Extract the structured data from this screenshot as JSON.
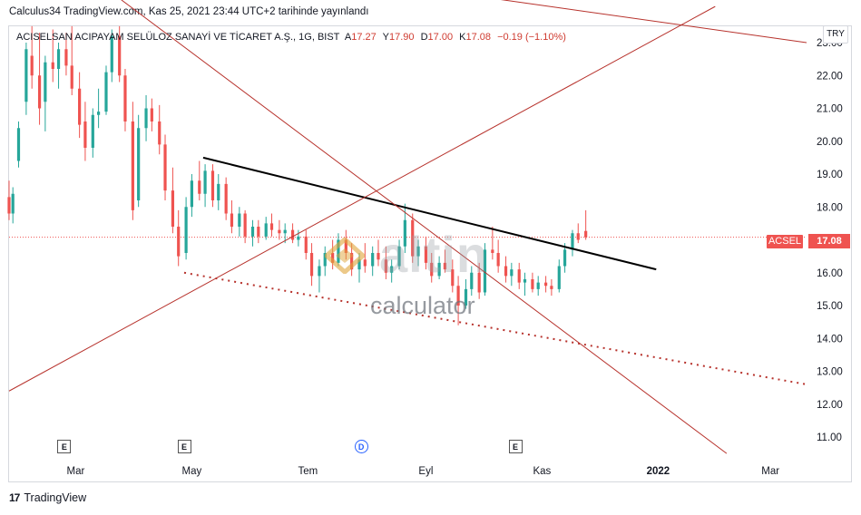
{
  "publish_line": "Calculus34 TradingView.com, Kas 25, 2021 23:44 UTC+2 tarihinde yayınlandı",
  "currency_badge": "TRY",
  "legend": {
    "name": "ACISELSAN ACIPAYAM SELÜLOZ SANAYİ VE TİCARET A.Ş., 1G, BIST",
    "open_label": "A",
    "open": "17.27",
    "high_label": "Y",
    "high": "17.90",
    "low_label": "D",
    "low": "17.00",
    "close_label": "K",
    "close": "17.08",
    "change": "−0.19 (−1.10%)"
  },
  "last_price": {
    "symbol": "ACSEL",
    "value": "17.08"
  },
  "watermark": {
    "brand": "altin",
    "sub": "calculator"
  },
  "events": [
    {
      "label": "E",
      "kind": "earnings",
      "date": "2021-02-23"
    },
    {
      "label": "E",
      "kind": "earnings",
      "date": "2021-04-27"
    },
    {
      "label": "D",
      "kind": "dividend",
      "date": "2021-07-29"
    },
    {
      "label": "E",
      "kind": "earnings",
      "date": "2021-10-18"
    }
  ],
  "footer": {
    "brand": "TradingView",
    "logo_glyph": "17"
  },
  "colors": {
    "up": "#26a69a",
    "down": "#ef5350",
    "trendline": "#b7322c",
    "price_line": "#ef5350"
  },
  "chart_data": {
    "type": "candlestick",
    "title": "ACISELSAN ACIPAYAM SELÜLOZ SANAYİ VE TİCARET A.Ş., 1G, BIST",
    "ylim": [
      10.5,
      23.5
    ],
    "y_ticks": [
      11,
      12,
      13,
      14,
      15,
      16,
      17,
      18,
      19,
      20,
      21,
      22,
      23
    ],
    "y_tick_labels": [
      "11.00",
      "12.00",
      "13.00",
      "14.00",
      "15.00",
      "16.00",
      "17.00",
      "18.00",
      "19.00",
      "20.00",
      "21.00",
      "22.00",
      "23.00"
    ],
    "xlim": [
      "2021-01-25",
      "2022-03-20"
    ],
    "x_ticks": [
      {
        "label": "Mar",
        "date": "2021-03-01"
      },
      {
        "label": "May",
        "date": "2021-05-01"
      },
      {
        "label": "Tem",
        "date": "2021-07-01"
      },
      {
        "label": "Eyl",
        "date": "2021-09-01"
      },
      {
        "label": "Kas",
        "date": "2021-11-01"
      },
      {
        "label": "2022",
        "date": "2022-01-01"
      },
      {
        "label": "Mar",
        "date": "2022-03-01"
      }
    ],
    "grid": false,
    "last_close": 17.08,
    "trendlines": [
      {
        "style": "black-solid",
        "from": {
          "date": "2021-05-07",
          "price": 19.5
        },
        "to": {
          "date": "2021-12-31",
          "price": 16.1
        }
      },
      {
        "style": "red-dotted",
        "from": {
          "date": "2021-04-27",
          "price": 16.0
        },
        "to": {
          "date": "2022-03-20",
          "price": 12.6
        }
      },
      {
        "style": "red-solid",
        "from": {
          "date": "2021-01-25",
          "price": 12.4
        },
        "to": {
          "date": "2022-01-31",
          "price": 24.1
        }
      },
      {
        "style": "red-solid",
        "from": {
          "date": "2021-03-25",
          "price": 24.3
        },
        "to": {
          "date": "2022-02-06",
          "price": 10.5
        }
      },
      {
        "style": "red-solid",
        "from": {
          "date": "2021-09-17",
          "price": 24.5
        },
        "to": {
          "date": "2022-03-20",
          "price": 23.0
        }
      }
    ],
    "candles": [
      {
        "date": "2021-01-25",
        "o": 18.3,
        "h": 18.8,
        "l": 17.6,
        "c": 17.8
      },
      {
        "date": "2021-01-27",
        "o": 17.8,
        "h": 18.6,
        "l": 17.5,
        "c": 18.4
      },
      {
        "date": "2021-01-30",
        "o": 19.4,
        "h": 20.6,
        "l": 19.2,
        "c": 20.4
      },
      {
        "date": "2021-02-03",
        "o": 21.2,
        "h": 23.0,
        "l": 20.8,
        "c": 22.8
      },
      {
        "date": "2021-02-06",
        "o": 22.6,
        "h": 23.5,
        "l": 21.6,
        "c": 22.0
      },
      {
        "date": "2021-02-10",
        "o": 22.0,
        "h": 23.3,
        "l": 20.5,
        "c": 21.0
      },
      {
        "date": "2021-02-13",
        "o": 21.2,
        "h": 22.6,
        "l": 20.3,
        "c": 22.4
      },
      {
        "date": "2021-02-17",
        "o": 22.4,
        "h": 23.4,
        "l": 21.8,
        "c": 22.2
      },
      {
        "date": "2021-02-20",
        "o": 22.2,
        "h": 23.0,
        "l": 21.6,
        "c": 22.8
      },
      {
        "date": "2021-02-24",
        "o": 22.8,
        "h": 23.3,
        "l": 22.0,
        "c": 22.3
      },
      {
        "date": "2021-02-27",
        "o": 22.3,
        "h": 23.5,
        "l": 21.4,
        "c": 21.6
      },
      {
        "date": "2021-03-03",
        "o": 21.6,
        "h": 22.1,
        "l": 20.1,
        "c": 20.5
      },
      {
        "date": "2021-03-06",
        "o": 20.6,
        "h": 21.2,
        "l": 19.4,
        "c": 19.8
      },
      {
        "date": "2021-03-10",
        "o": 19.8,
        "h": 21.0,
        "l": 19.5,
        "c": 20.8
      },
      {
        "date": "2021-03-13",
        "o": 20.8,
        "h": 21.6,
        "l": 20.4,
        "c": 20.9
      },
      {
        "date": "2021-03-17",
        "o": 20.9,
        "h": 22.3,
        "l": 20.8,
        "c": 22.1
      },
      {
        "date": "2021-03-20",
        "o": 22.1,
        "h": 23.4,
        "l": 21.8,
        "c": 23.2
      },
      {
        "date": "2021-03-24",
        "o": 23.2,
        "h": 23.5,
        "l": 21.8,
        "c": 22.0
      },
      {
        "date": "2021-03-27",
        "o": 22.0,
        "h": 22.2,
        "l": 20.3,
        "c": 20.6
      },
      {
        "date": "2021-03-31",
        "o": 20.6,
        "h": 21.2,
        "l": 17.6,
        "c": 17.9
      },
      {
        "date": "2021-04-03",
        "o": 18.2,
        "h": 20.8,
        "l": 18.0,
        "c": 20.4
      },
      {
        "date": "2021-04-07",
        "o": 20.4,
        "h": 21.4,
        "l": 20.0,
        "c": 21.0
      },
      {
        "date": "2021-04-10",
        "o": 21.0,
        "h": 21.3,
        "l": 20.3,
        "c": 20.6
      },
      {
        "date": "2021-04-14",
        "o": 20.6,
        "h": 21.1,
        "l": 19.6,
        "c": 19.9
      },
      {
        "date": "2021-04-17",
        "o": 19.9,
        "h": 20.2,
        "l": 18.2,
        "c": 18.5
      },
      {
        "date": "2021-04-21",
        "o": 18.5,
        "h": 19.2,
        "l": 17.2,
        "c": 17.4
      },
      {
        "date": "2021-04-24",
        "o": 17.4,
        "h": 17.9,
        "l": 16.2,
        "c": 16.5
      },
      {
        "date": "2021-04-28",
        "o": 16.6,
        "h": 18.3,
        "l": 16.4,
        "c": 18.0
      },
      {
        "date": "2021-05-01",
        "o": 18.0,
        "h": 19.0,
        "l": 17.7,
        "c": 18.8
      },
      {
        "date": "2021-05-05",
        "o": 18.8,
        "h": 19.4,
        "l": 18.2,
        "c": 18.4
      },
      {
        "date": "2021-05-08",
        "o": 18.4,
        "h": 19.3,
        "l": 18.0,
        "c": 19.1
      },
      {
        "date": "2021-05-12",
        "o": 19.1,
        "h": 19.3,
        "l": 18.0,
        "c": 18.2
      },
      {
        "date": "2021-05-15",
        "o": 18.2,
        "h": 19.0,
        "l": 17.9,
        "c": 18.7
      },
      {
        "date": "2021-05-19",
        "o": 18.7,
        "h": 18.9,
        "l": 17.6,
        "c": 17.8
      },
      {
        "date": "2021-05-22",
        "o": 17.8,
        "h": 18.2,
        "l": 17.2,
        "c": 17.4
      },
      {
        "date": "2021-05-26",
        "o": 17.4,
        "h": 18.0,
        "l": 17.1,
        "c": 17.8
      },
      {
        "date": "2021-05-29",
        "o": 17.8,
        "h": 17.9,
        "l": 16.9,
        "c": 17.1
      },
      {
        "date": "2021-06-02",
        "o": 17.1,
        "h": 17.6,
        "l": 16.8,
        "c": 17.4
      },
      {
        "date": "2021-06-05",
        "o": 17.4,
        "h": 17.6,
        "l": 16.9,
        "c": 17.1
      },
      {
        "date": "2021-06-09",
        "o": 17.1,
        "h": 17.7,
        "l": 17.0,
        "c": 17.5
      },
      {
        "date": "2021-06-12",
        "o": 17.5,
        "h": 17.8,
        "l": 17.1,
        "c": 17.3
      },
      {
        "date": "2021-06-16",
        "o": 17.3,
        "h": 17.6,
        "l": 17.0,
        "c": 17.2
      },
      {
        "date": "2021-06-19",
        "o": 17.2,
        "h": 17.5,
        "l": 16.9,
        "c": 17.3
      },
      {
        "date": "2021-06-23",
        "o": 17.3,
        "h": 17.5,
        "l": 16.9,
        "c": 17.0
      },
      {
        "date": "2021-06-26",
        "o": 17.0,
        "h": 17.3,
        "l": 16.8,
        "c": 17.1
      },
      {
        "date": "2021-06-30",
        "o": 17.1,
        "h": 17.3,
        "l": 16.4,
        "c": 16.6
      },
      {
        "date": "2021-07-03",
        "o": 16.6,
        "h": 16.9,
        "l": 15.6,
        "c": 15.9
      },
      {
        "date": "2021-07-07",
        "o": 15.9,
        "h": 16.4,
        "l": 15.4,
        "c": 16.2
      },
      {
        "date": "2021-07-10",
        "o": 16.2,
        "h": 16.8,
        "l": 15.9,
        "c": 16.6
      },
      {
        "date": "2021-07-14",
        "o": 16.6,
        "h": 17.0,
        "l": 16.1,
        "c": 16.3
      },
      {
        "date": "2021-07-17",
        "o": 16.3,
        "h": 17.2,
        "l": 16.2,
        "c": 17.0
      },
      {
        "date": "2021-07-21",
        "o": 17.0,
        "h": 17.3,
        "l": 16.4,
        "c": 16.6
      },
      {
        "date": "2021-07-24",
        "o": 16.6,
        "h": 16.9,
        "l": 15.9,
        "c": 16.1
      },
      {
        "date": "2021-07-28",
        "o": 16.1,
        "h": 16.6,
        "l": 15.7,
        "c": 16.4
      },
      {
        "date": "2021-07-31",
        "o": 16.4,
        "h": 16.9,
        "l": 16.0,
        "c": 16.2
      },
      {
        "date": "2021-08-04",
        "o": 16.2,
        "h": 16.8,
        "l": 15.9,
        "c": 16.6
      },
      {
        "date": "2021-08-07",
        "o": 16.6,
        "h": 17.0,
        "l": 16.2,
        "c": 16.4
      },
      {
        "date": "2021-08-11",
        "o": 16.4,
        "h": 16.8,
        "l": 15.8,
        "c": 16.0
      },
      {
        "date": "2021-08-14",
        "o": 16.0,
        "h": 16.4,
        "l": 15.7,
        "c": 16.2
      },
      {
        "date": "2021-08-18",
        "o": 16.2,
        "h": 17.0,
        "l": 16.1,
        "c": 16.8
      },
      {
        "date": "2021-08-21",
        "o": 16.8,
        "h": 18.1,
        "l": 16.6,
        "c": 17.6
      },
      {
        "date": "2021-08-25",
        "o": 17.6,
        "h": 17.8,
        "l": 16.3,
        "c": 16.5
      },
      {
        "date": "2021-08-28",
        "o": 16.5,
        "h": 17.0,
        "l": 16.2,
        "c": 16.8
      },
      {
        "date": "2021-09-01",
        "o": 16.8,
        "h": 17.1,
        "l": 16.1,
        "c": 16.3
      },
      {
        "date": "2021-09-04",
        "o": 16.3,
        "h": 16.6,
        "l": 15.7,
        "c": 15.9
      },
      {
        "date": "2021-09-08",
        "o": 15.9,
        "h": 16.5,
        "l": 15.8,
        "c": 16.3
      },
      {
        "date": "2021-09-11",
        "o": 16.3,
        "h": 16.7,
        "l": 16.0,
        "c": 16.1
      },
      {
        "date": "2021-09-15",
        "o": 16.1,
        "h": 16.4,
        "l": 15.4,
        "c": 15.6
      },
      {
        "date": "2021-09-18",
        "o": 15.6,
        "h": 15.9,
        "l": 14.4,
        "c": 15.0
      },
      {
        "date": "2021-09-22",
        "o": 15.0,
        "h": 15.8,
        "l": 14.9,
        "c": 15.5
      },
      {
        "date": "2021-09-25",
        "o": 15.5,
        "h": 16.2,
        "l": 15.3,
        "c": 16.0
      },
      {
        "date": "2021-09-29",
        "o": 16.0,
        "h": 16.3,
        "l": 15.2,
        "c": 15.4
      },
      {
        "date": "2021-10-02",
        "o": 15.4,
        "h": 16.9,
        "l": 15.3,
        "c": 16.7
      },
      {
        "date": "2021-10-06",
        "o": 16.7,
        "h": 17.4,
        "l": 16.4,
        "c": 16.6
      },
      {
        "date": "2021-10-09",
        "o": 16.6,
        "h": 17.0,
        "l": 16.0,
        "c": 16.2
      },
      {
        "date": "2021-10-13",
        "o": 16.2,
        "h": 16.5,
        "l": 15.7,
        "c": 15.9
      },
      {
        "date": "2021-10-16",
        "o": 15.9,
        "h": 16.3,
        "l": 15.6,
        "c": 16.1
      },
      {
        "date": "2021-10-20",
        "o": 16.1,
        "h": 16.3,
        "l": 15.5,
        "c": 15.7
      },
      {
        "date": "2021-10-23",
        "o": 15.7,
        "h": 16.0,
        "l": 15.3,
        "c": 15.8
      },
      {
        "date": "2021-10-27",
        "o": 15.8,
        "h": 16.0,
        "l": 15.4,
        "c": 15.5
      },
      {
        "date": "2021-10-30",
        "o": 15.5,
        "h": 15.9,
        "l": 15.3,
        "c": 15.7
      },
      {
        "date": "2021-11-03",
        "o": 15.7,
        "h": 15.9,
        "l": 15.4,
        "c": 15.6
      },
      {
        "date": "2021-11-06",
        "o": 15.6,
        "h": 15.8,
        "l": 15.3,
        "c": 15.5
      },
      {
        "date": "2021-11-10",
        "o": 15.5,
        "h": 16.4,
        "l": 15.4,
        "c": 16.2
      },
      {
        "date": "2021-11-13",
        "o": 16.2,
        "h": 16.9,
        "l": 16.0,
        "c": 16.7
      },
      {
        "date": "2021-11-17",
        "o": 16.7,
        "h": 17.3,
        "l": 16.5,
        "c": 17.2
      },
      {
        "date": "2021-11-20",
        "o": 17.2,
        "h": 17.5,
        "l": 16.9,
        "c": 17.0
      },
      {
        "date": "2021-11-24",
        "o": 17.27,
        "h": 17.9,
        "l": 17.0,
        "c": 17.08
      }
    ]
  }
}
